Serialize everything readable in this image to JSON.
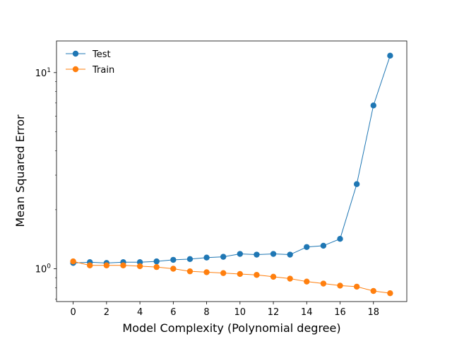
{
  "chart_data": {
    "type": "line",
    "title": "",
    "xlabel": "Model Complexity (Polynomial degree)",
    "ylabel": "Mean Squared Error",
    "x": [
      0,
      1,
      2,
      3,
      4,
      5,
      6,
      7,
      8,
      9,
      10,
      11,
      12,
      13,
      14,
      15,
      16,
      17,
      18,
      19
    ],
    "xticks": [
      0,
      2,
      4,
      6,
      8,
      10,
      12,
      14,
      16,
      18
    ],
    "xlim": [
      -1,
      20
    ],
    "yscale": "log",
    "ylim": [
      0.68,
      14.5
    ],
    "yticks": [
      {
        "value": 1,
        "base": "10",
        "exp": "0"
      },
      {
        "value": 10,
        "base": "10",
        "exp": "1"
      }
    ],
    "grid": false,
    "legend_position": "top-left",
    "series": [
      {
        "name": "Test",
        "color": "#1f77b4",
        "values": [
          1.07,
          1.08,
          1.07,
          1.08,
          1.08,
          1.09,
          1.11,
          1.12,
          1.14,
          1.15,
          1.19,
          1.18,
          1.19,
          1.18,
          1.29,
          1.31,
          1.42,
          2.7,
          6.8,
          12.2
        ]
      },
      {
        "name": "Train",
        "color": "#ff7f0e",
        "values": [
          1.09,
          1.04,
          1.04,
          1.04,
          1.03,
          1.02,
          1.0,
          0.97,
          0.96,
          0.95,
          0.94,
          0.93,
          0.91,
          0.89,
          0.86,
          0.84,
          0.82,
          0.81,
          0.77,
          0.75
        ]
      }
    ]
  }
}
